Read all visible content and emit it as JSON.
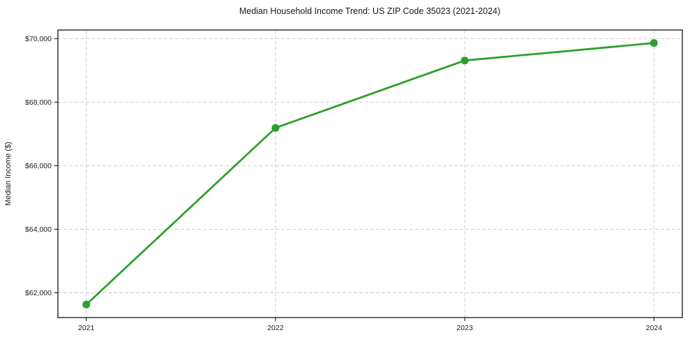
{
  "chart_data": {
    "type": "line",
    "title": "Median Household Income Trend: US ZIP Code 35023 (2021-2024)",
    "xlabel": "",
    "ylabel": "Median Income ($)",
    "categories": [
      "2021",
      "2022",
      "2023",
      "2024"
    ],
    "values": [
      61630,
      67190,
      69310,
      69860
    ],
    "series": [
      {
        "name": "Median household income",
        "values": [
          61630,
          67190,
          69310,
          69860
        ]
      }
    ],
    "y_ticks": [
      62000,
      64000,
      66000,
      68000,
      70000
    ],
    "y_tick_labels": [
      "$62,000",
      "$64,000",
      "$66,000",
      "$68,000",
      "$70,000"
    ],
    "x_tick_labels": [
      "2021",
      "2022",
      "2023",
      "2024"
    ],
    "ylim": [
      61220,
      70270
    ],
    "grid": "dashed-both-axes",
    "legend": "none",
    "marker": "circle",
    "colors": {
      "line": "#2ca02c",
      "marker": "#2ca02c",
      "grid": "#c9c9c9",
      "spine": "#000000",
      "text": "#1a1a1a",
      "background": "#ffffff"
    }
  }
}
